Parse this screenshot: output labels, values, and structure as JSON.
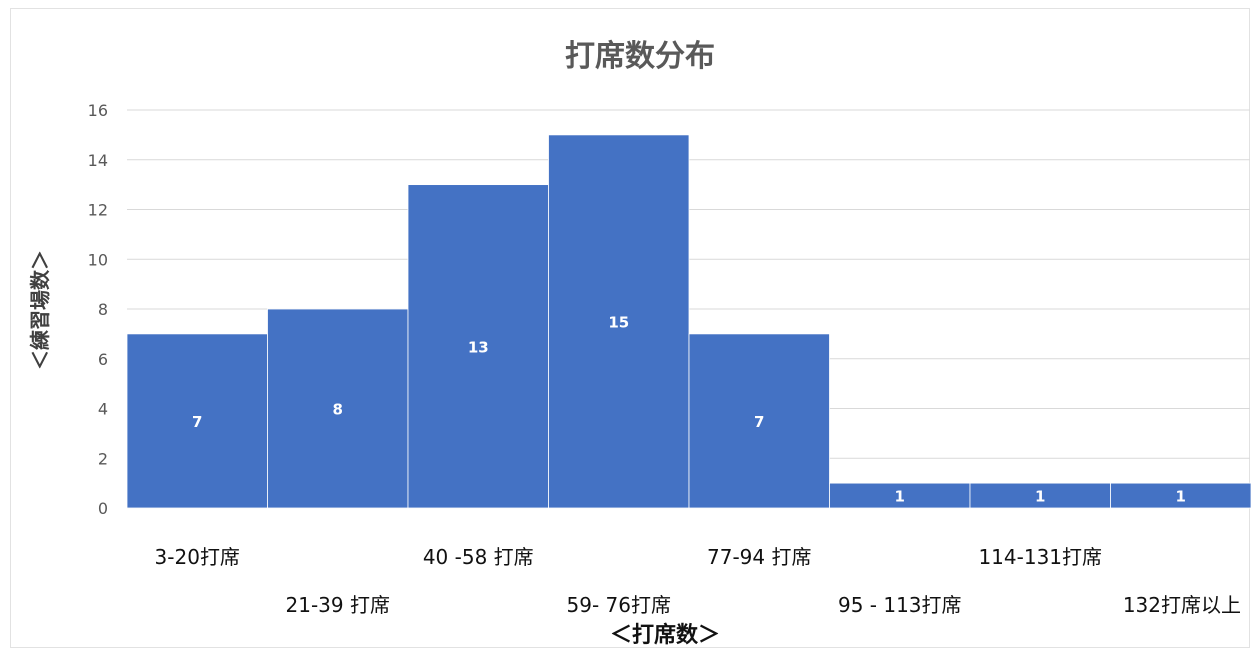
{
  "chart_data": {
    "type": "bar",
    "title": "打席数分布",
    "xlabel": "＜打席数＞",
    "ylabel": "＜練習場数＞",
    "categories": [
      "3-20打席",
      "21-39 打席",
      "40 -58 打席",
      "59- 76打席",
      "77-94 打席",
      "95 - 113打席",
      "114-131打席",
      "132打席以上"
    ],
    "values": [
      7,
      8,
      13,
      15,
      7,
      1,
      1,
      1
    ],
    "data_labels": [
      "7",
      "8",
      "13",
      "15",
      "7",
      "1",
      "1",
      "1"
    ],
    "ylim": [
      0,
      16
    ],
    "yticks": [
      "0",
      "2",
      "4",
      "6",
      "8",
      "10",
      "12",
      "14",
      "16"
    ],
    "grid": true,
    "legend": "none",
    "colors": {
      "bar": "#4472C4",
      "bar_edge": "#ffffff"
    }
  }
}
